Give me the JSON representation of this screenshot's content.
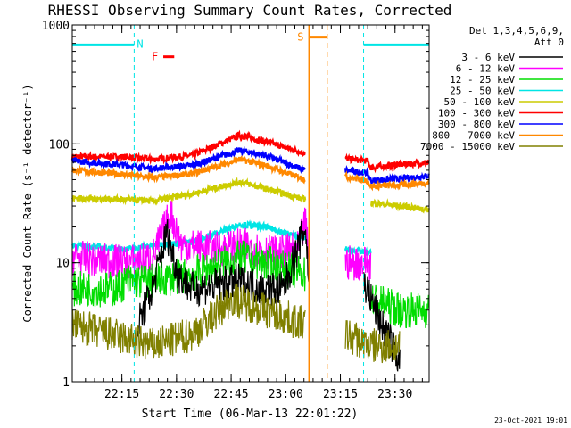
{
  "chart_data": {
    "type": "line",
    "title": "RHESSI Observing Summary Count Rates, Corrected",
    "xlabel": "Start Time (06-Mar-13 22:01:22)",
    "ylabel": "Corrected Count Rate (s⁻¹ detector⁻¹)",
    "y_scale": "log",
    "ylim": [
      1,
      1000
    ],
    "xlim_min": [
      0,
      98
    ],
    "y_ticks": [
      {
        "v": 1,
        "label": "1"
      },
      {
        "v": 10,
        "label": "10"
      },
      {
        "v": 100,
        "label": "100"
      },
      {
        "v": 1000,
        "label": "1000"
      }
    ],
    "x_ticks": [
      {
        "m": 13.63,
        "label": "22:15"
      },
      {
        "m": 28.63,
        "label": "22:30"
      },
      {
        "m": 43.63,
        "label": "22:45"
      },
      {
        "m": 58.63,
        "label": "23:00"
      },
      {
        "m": 73.63,
        "label": "23:15"
      },
      {
        "m": 88.63,
        "label": "23:30"
      }
    ],
    "legend": {
      "header1": "Det 1,3,4,5,6,9,",
      "header2": "Att 0",
      "position": "right"
    },
    "series": [
      {
        "name": "3 - 6 keV",
        "color": "#000000"
      },
      {
        "name": "6 - 12 keV",
        "color": "#ff00ff"
      },
      {
        "name": "12 - 25 keV",
        "color": "#00dd00"
      },
      {
        "name": "25 - 50 keV",
        "color": "#00e5e5"
      },
      {
        "name": "50 - 100 keV",
        "color": "#cccc00"
      },
      {
        "name": "100 - 300 keV",
        "color": "#ff0000"
      },
      {
        "name": "300 - 800 keV",
        "color": "#0000ff"
      },
      {
        "name": "800 - 7000 keV",
        "color": "#ff8800"
      },
      {
        "name": "7000 - 15000 keV",
        "color": "#808000"
      }
    ],
    "profiles": [
      {
        "series": "100 - 300 keV",
        "points": [
          [
            0,
            78
          ],
          [
            15,
            78
          ],
          [
            22,
            74
          ],
          [
            33,
            80
          ],
          [
            46,
            118
          ],
          [
            53,
            105
          ],
          [
            64,
            83
          ]
        ],
        "points2": [
          [
            75,
            75
          ],
          [
            81,
            72
          ],
          [
            82,
            63
          ],
          [
            90,
            67
          ],
          [
            98,
            70
          ]
        ]
      },
      {
        "series": "300 - 800 keV",
        "points": [
          [
            0,
            72
          ],
          [
            15,
            66
          ],
          [
            22,
            62
          ],
          [
            33,
            66
          ],
          [
            46,
            88
          ],
          [
            53,
            80
          ],
          [
            64,
            60
          ]
        ],
        "points2": [
          [
            75,
            60
          ],
          [
            81,
            57
          ],
          [
            82,
            49
          ],
          [
            90,
            51
          ],
          [
            98,
            54
          ]
        ]
      },
      {
        "series": "800 - 7000 keV",
        "points": [
          [
            0,
            60
          ],
          [
            15,
            55
          ],
          [
            22,
            52
          ],
          [
            33,
            56
          ],
          [
            46,
            74
          ],
          [
            53,
            66
          ],
          [
            64,
            50
          ]
        ],
        "points2": [
          [
            75,
            53
          ],
          [
            81,
            49
          ],
          [
            82,
            44
          ],
          [
            90,
            45
          ],
          [
            98,
            47
          ]
        ]
      },
      {
        "series": "50 - 100 keV",
        "points": [
          [
            0,
            35
          ],
          [
            15,
            34
          ],
          [
            22,
            33
          ],
          [
            33,
            38
          ],
          [
            46,
            48
          ],
          [
            53,
            42
          ],
          [
            64,
            34
          ]
        ],
        "points2": [
          [
            82,
            32
          ],
          [
            90,
            30
          ],
          [
            98,
            28
          ]
        ]
      },
      {
        "series": "25 - 50 keV",
        "points": [
          [
            0,
            14
          ],
          [
            15,
            13
          ],
          [
            22,
            14
          ],
          [
            33,
            15
          ],
          [
            46,
            21
          ],
          [
            53,
            20
          ],
          [
            64,
            16
          ]
        ],
        "points2": [
          [
            75,
            13
          ],
          [
            82,
            12
          ]
        ]
      },
      {
        "series": "6 - 12 keV",
        "points": [
          [
            0,
            11
          ],
          [
            15,
            10
          ],
          [
            22,
            11
          ],
          [
            27,
            26
          ],
          [
            30,
            14
          ],
          [
            40,
            13
          ],
          [
            47,
            14
          ],
          [
            56,
            12
          ],
          [
            62,
            13
          ],
          [
            64,
            22
          ],
          [
            65,
            12
          ]
        ],
        "points2": [
          [
            75,
            10
          ],
          [
            82,
            10
          ]
        ]
      },
      {
        "series": "12 - 25 keV",
        "points": [
          [
            0,
            6
          ],
          [
            12,
            6
          ],
          [
            15,
            7
          ],
          [
            22,
            7
          ],
          [
            33,
            8
          ],
          [
            46,
            11
          ],
          [
            53,
            10
          ],
          [
            64,
            8
          ]
        ],
        "points2": [
          [
            82,
            5
          ],
          [
            90,
            4
          ],
          [
            98,
            4
          ]
        ]
      },
      {
        "series": "3 - 6 keV",
        "points": [
          [
            18,
            3
          ],
          [
            22,
            6
          ],
          [
            26,
            18
          ],
          [
            29,
            8
          ],
          [
            33,
            6
          ],
          [
            46,
            7
          ],
          [
            53,
            6
          ],
          [
            58,
            6
          ],
          [
            64,
            20
          ],
          [
            65,
            7
          ]
        ],
        "points2": [
          [
            80,
            7
          ],
          [
            85,
            3
          ],
          [
            90,
            1.5
          ]
        ]
      },
      {
        "series": "7000 - 15000 keV",
        "points": [
          [
            0,
            3
          ],
          [
            10,
            2.5
          ],
          [
            22,
            2
          ],
          [
            33,
            2.5
          ],
          [
            44,
            5
          ],
          [
            53,
            4
          ],
          [
            64,
            3
          ]
        ],
        "points2": [
          [
            75,
            2.5
          ],
          [
            82,
            2
          ],
          [
            90,
            2
          ]
        ]
      }
    ],
    "annotations": [
      {
        "type": "night",
        "label": "N",
        "ranges": [
          [
            0,
            17
          ],
          [
            80,
            98
          ]
        ],
        "color": "#00e5e5",
        "y_value": 680
      },
      {
        "type": "flare",
        "label": "F",
        "range": [
          25,
          28
        ],
        "color": "#ff0000",
        "y_value": 540
      },
      {
        "type": "saa",
        "label": "S",
        "range": [
          65,
          70
        ],
        "color": "#ff8800",
        "y_value": 790
      }
    ],
    "data_gap": [
      65,
      70
    ],
    "timestamp": "23-Oct-2021 19:01"
  }
}
